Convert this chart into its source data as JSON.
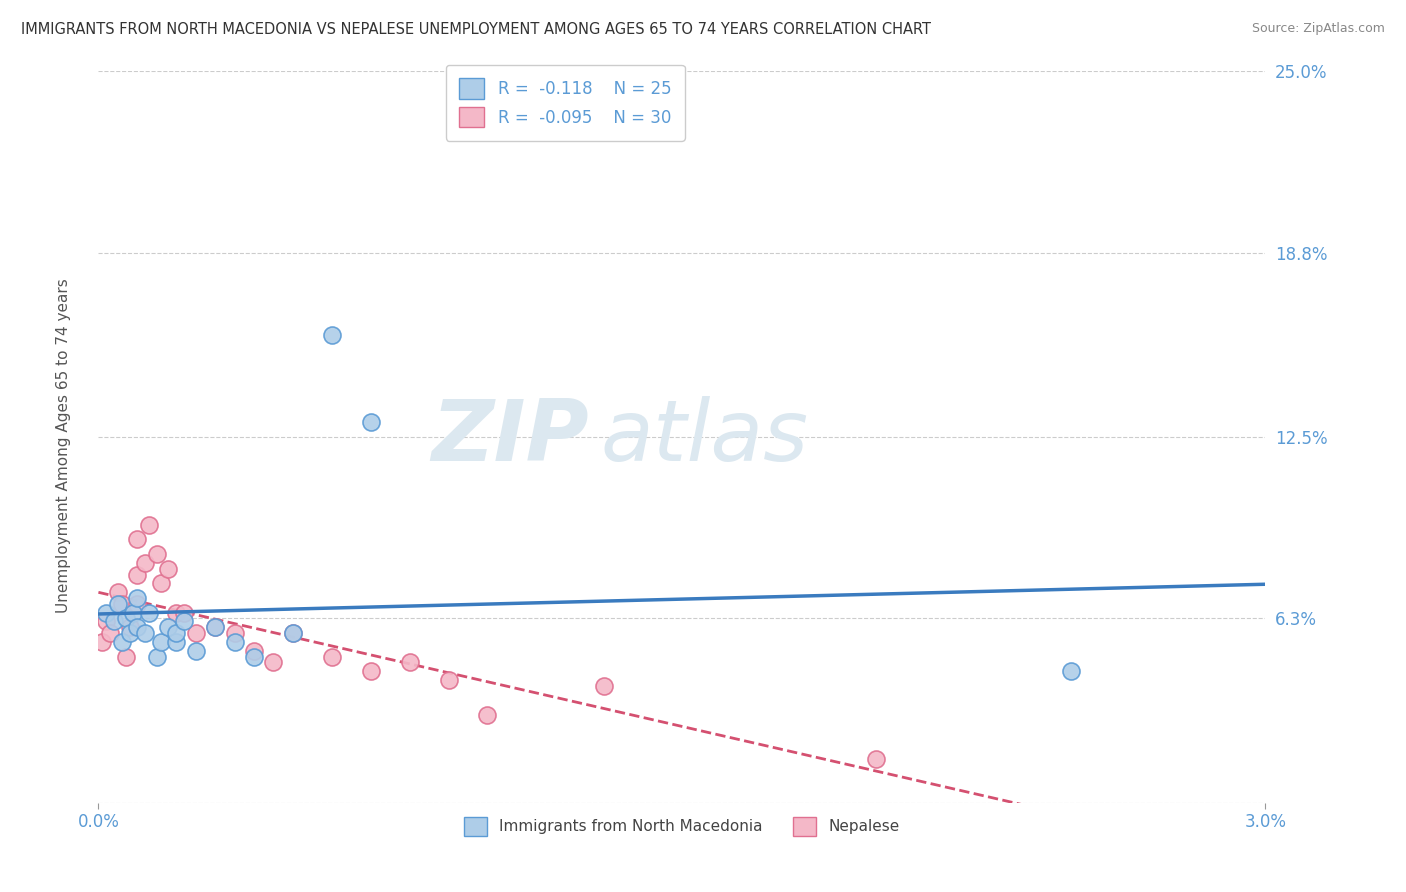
{
  "title": "IMMIGRANTS FROM NORTH MACEDONIA VS NEPALESE UNEMPLOYMENT AMONG AGES 65 TO 74 YEARS CORRELATION CHART",
  "source": "Source: ZipAtlas.com",
  "ylabel": "Unemployment Among Ages 65 to 74 years",
  "xlim": [
    0.0,
    0.03
  ],
  "ylim": [
    0.0,
    0.25
  ],
  "ytick_positions": [
    0.0,
    0.063,
    0.125,
    0.188,
    0.25
  ],
  "ytick_labels": [
    "",
    "6.3%",
    "12.5%",
    "18.8%",
    "25.0%"
  ],
  "legend_label1": "Immigrants from North Macedonia",
  "legend_label2": "Nepalese",
  "color_blue_fill": "#aecde8",
  "color_pink_fill": "#f4b8c8",
  "color_blue_edge": "#5b9bd5",
  "color_pink_edge": "#e07090",
  "color_blue_line": "#3a7bbf",
  "color_pink_line": "#d45070",
  "color_blue_text": "#5b9bd5",
  "watermark_zip": "ZIP",
  "watermark_atlas": "atlas",
  "blue_x": [
    0.0002,
    0.0004,
    0.0005,
    0.0006,
    0.0007,
    0.0008,
    0.0009,
    0.001,
    0.001,
    0.0012,
    0.0013,
    0.0015,
    0.0016,
    0.0018,
    0.002,
    0.002,
    0.0022,
    0.0025,
    0.003,
    0.0035,
    0.004,
    0.005,
    0.006,
    0.007,
    0.025
  ],
  "blue_y": [
    0.065,
    0.062,
    0.068,
    0.055,
    0.063,
    0.058,
    0.065,
    0.06,
    0.07,
    0.058,
    0.065,
    0.05,
    0.055,
    0.06,
    0.055,
    0.058,
    0.062,
    0.052,
    0.06,
    0.055,
    0.05,
    0.058,
    0.16,
    0.13,
    0.045
  ],
  "pink_x": [
    0.0001,
    0.0002,
    0.0003,
    0.0005,
    0.0006,
    0.0007,
    0.0008,
    0.001,
    0.001,
    0.001,
    0.0012,
    0.0013,
    0.0015,
    0.0016,
    0.0018,
    0.002,
    0.0022,
    0.0025,
    0.003,
    0.0035,
    0.004,
    0.0045,
    0.005,
    0.006,
    0.007,
    0.008,
    0.009,
    0.01,
    0.013,
    0.02
  ],
  "pink_y": [
    0.055,
    0.062,
    0.058,
    0.072,
    0.068,
    0.05,
    0.06,
    0.068,
    0.078,
    0.09,
    0.082,
    0.095,
    0.085,
    0.075,
    0.08,
    0.065,
    0.065,
    0.058,
    0.06,
    0.058,
    0.052,
    0.048,
    0.058,
    0.05,
    0.045,
    0.048,
    0.042,
    0.03,
    0.04,
    0.015
  ]
}
